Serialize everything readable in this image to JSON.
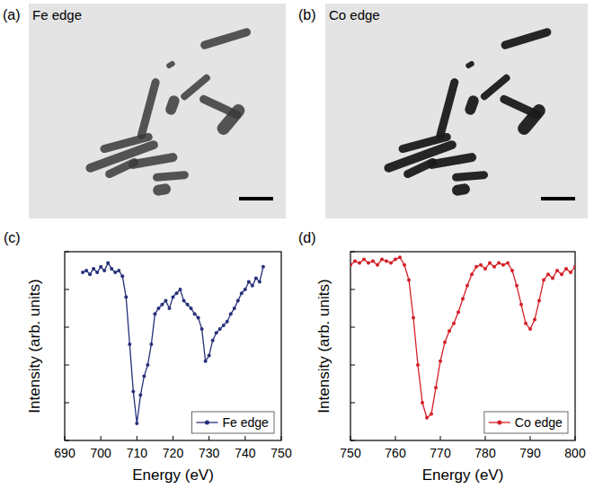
{
  "images": [
    {
      "label": "(a)",
      "title": "Fe edge"
    },
    {
      "label": "(b)",
      "title": "Co edge"
    }
  ],
  "chart_data": [
    {
      "type": "line",
      "title": "(c)",
      "x_label": "Energy (eV)",
      "y_label": "Intensity (arb. units)",
      "xlim": [
        690,
        750
      ],
      "xticks": [
        690,
        700,
        710,
        720,
        730,
        740,
        750
      ],
      "ylim": [
        0,
        1
      ],
      "yticks": [
        0,
        0.2,
        0.4,
        0.6,
        0.8,
        1
      ],
      "tick_labels": "x",
      "legend": "lower right",
      "x": [
        695,
        696,
        697,
        698,
        699,
        700,
        701,
        702,
        703,
        704,
        705,
        706,
        707,
        708,
        709,
        710,
        711,
        712,
        713,
        714,
        715,
        716,
        717,
        718,
        719,
        720,
        721,
        722,
        723,
        724,
        725,
        726,
        727,
        728,
        729,
        730,
        731,
        732,
        733,
        734,
        735,
        736,
        737,
        738,
        739,
        740,
        741,
        742,
        743,
        744,
        745
      ],
      "series": [
        {
          "name": "Fe edge",
          "color": "#27317a",
          "marker": "circle",
          "line_style": "solid",
          "values": [
            0.89,
            0.9,
            0.88,
            0.91,
            0.89,
            0.92,
            0.9,
            0.94,
            0.91,
            0.89,
            0.9,
            0.87,
            0.76,
            0.51,
            0.26,
            0.09,
            0.24,
            0.34,
            0.4,
            0.51,
            0.67,
            0.7,
            0.72,
            0.74,
            0.7,
            0.76,
            0.78,
            0.8,
            0.74,
            0.72,
            0.7,
            0.67,
            0.65,
            0.59,
            0.42,
            0.45,
            0.53,
            0.57,
            0.59,
            0.61,
            0.63,
            0.67,
            0.7,
            0.74,
            0.78,
            0.8,
            0.84,
            0.82,
            0.86,
            0.84,
            0.92
          ]
        }
      ]
    },
    {
      "type": "line",
      "title": "(d)",
      "x_label": "Energy (eV)",
      "y_label": "Intensity (arb. units)",
      "xlim": [
        750,
        800
      ],
      "xticks": [
        750,
        760,
        770,
        780,
        790,
        800
      ],
      "ylim": [
        0,
        1
      ],
      "yticks": [
        0,
        0.2,
        0.4,
        0.6,
        0.8,
        1
      ],
      "tick_labels": "x",
      "legend": "lower right",
      "x": [
        750,
        751,
        752,
        753,
        754,
        755,
        756,
        757,
        758,
        759,
        760,
        761,
        762,
        763,
        764,
        765,
        766,
        767,
        768,
        769,
        770,
        771,
        772,
        773,
        774,
        775,
        776,
        777,
        778,
        779,
        780,
        781,
        782,
        783,
        784,
        785,
        786,
        787,
        788,
        789,
        790,
        791,
        792,
        793,
        794,
        795,
        796,
        797,
        798,
        799,
        800
      ],
      "series": [
        {
          "name": "Co edge",
          "color": "#d41f26",
          "marker": "circle",
          "line_style": "solid",
          "values": [
            0.93,
            0.95,
            0.94,
            0.96,
            0.94,
            0.95,
            0.93,
            0.96,
            0.95,
            0.94,
            0.96,
            0.97,
            0.93,
            0.85,
            0.65,
            0.4,
            0.2,
            0.12,
            0.14,
            0.28,
            0.42,
            0.52,
            0.58,
            0.62,
            0.68,
            0.75,
            0.82,
            0.88,
            0.92,
            0.93,
            0.91,
            0.94,
            0.92,
            0.94,
            0.93,
            0.94,
            0.9,
            0.82,
            0.72,
            0.62,
            0.59,
            0.64,
            0.74,
            0.85,
            0.88,
            0.86,
            0.9,
            0.88,
            0.91,
            0.89,
            0.92
          ]
        }
      ]
    }
  ]
}
